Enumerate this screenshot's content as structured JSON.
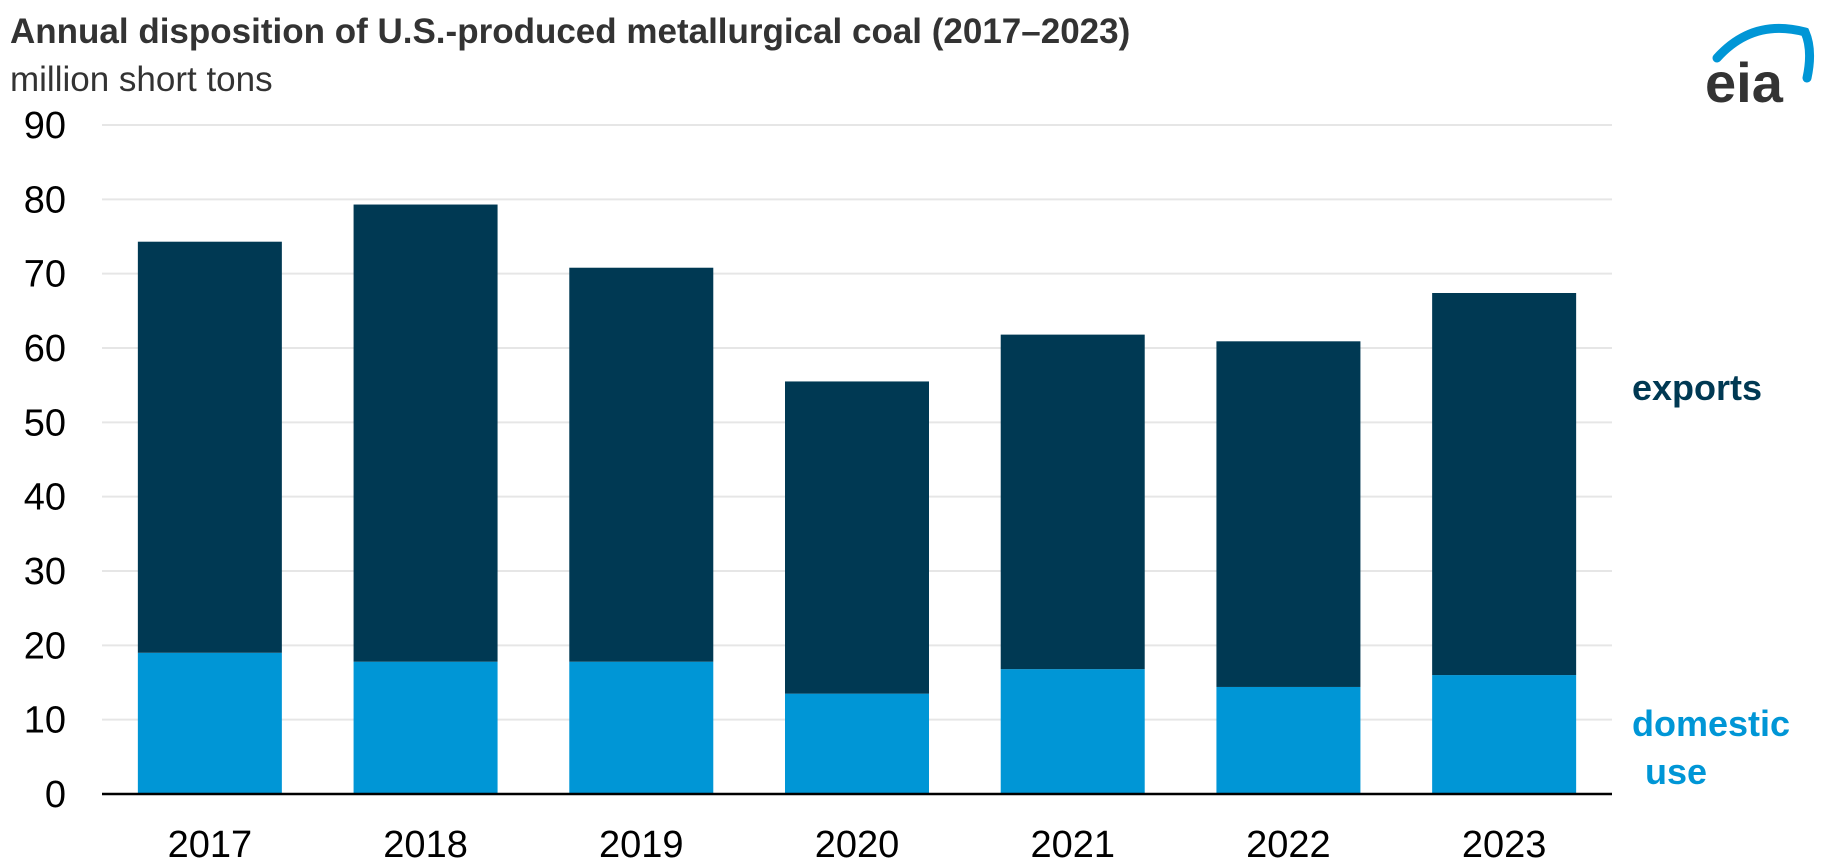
{
  "header": {
    "title": "Annual disposition of U.S.-produced metallurgical coal (2017–2023)",
    "subtitle": "million short tons"
  },
  "logo": {
    "text": "eia",
    "color": "#333333",
    "arc_color": "#0096d6"
  },
  "chart_data": {
    "type": "bar",
    "stacked": true,
    "categories": [
      "2017",
      "2018",
      "2019",
      "2020",
      "2021",
      "2022",
      "2023"
    ],
    "series": [
      {
        "name": "domestic use",
        "label_lines": [
          "domestic",
          "use"
        ],
        "color": "#0096d6",
        "values": [
          19.0,
          17.8,
          17.8,
          13.5,
          16.8,
          14.4,
          16.0
        ]
      },
      {
        "name": "exports",
        "label_lines": [
          "exports"
        ],
        "color": "#003953",
        "values": [
          55.3,
          61.5,
          53.0,
          42.0,
          45.0,
          46.5,
          51.4
        ]
      }
    ],
    "ylim": [
      0,
      90
    ],
    "yticks": [
      "0",
      "10",
      "20",
      "30",
      "40",
      "50",
      "60",
      "70",
      "80",
      "90"
    ],
    "grid": true,
    "legend": "direct labels at right"
  }
}
